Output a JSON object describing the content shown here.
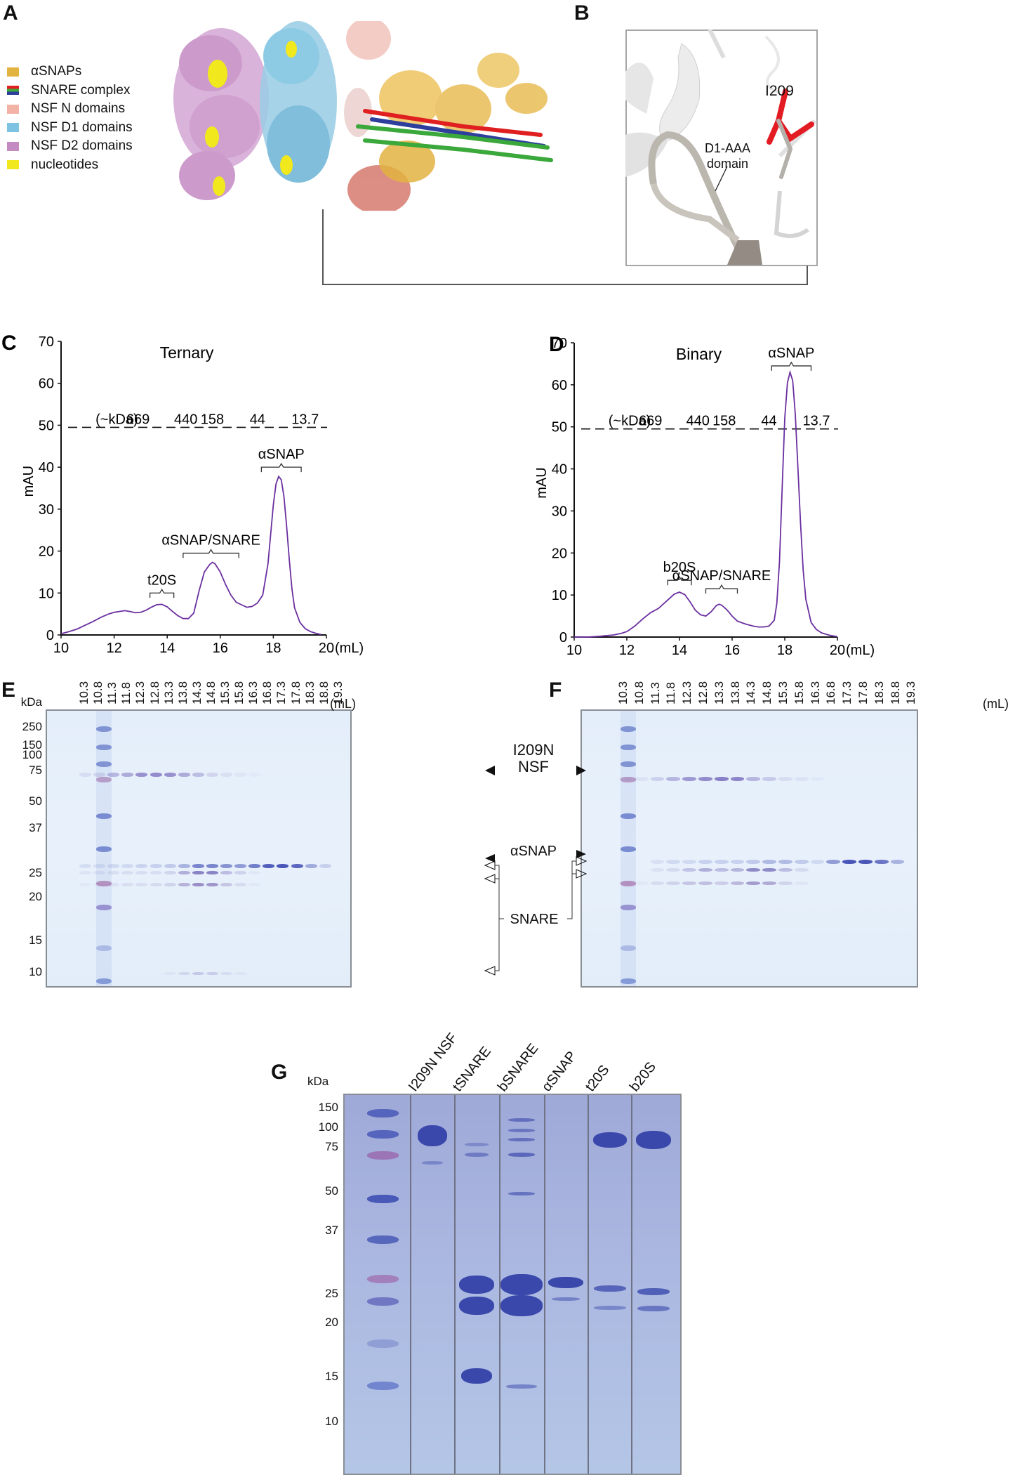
{
  "panels": {
    "A": {
      "letter": "A",
      "legend": [
        {
          "label": "αSNAPs",
          "color": "#e3b341"
        },
        {
          "label": "SNARE complex",
          "color": "multi"
        },
        {
          "label": "NSF N domains",
          "color": "#f2b2a6"
        },
        {
          "label": "NSF D1 domains",
          "color": "#7ec4e2"
        },
        {
          "label": "NSF D2 domains",
          "color": "#c48ac2"
        },
        {
          "label": "nucleotides",
          "color": "#f2e81e"
        }
      ],
      "snare_colors": [
        "#e02020",
        "#3aa83a",
        "#2d3e9c"
      ]
    },
    "B": {
      "letter": "B",
      "residue_label": "I209",
      "domain_label_line1": "D1-AAA",
      "domain_label_line2": "domain",
      "residue_color": "#e31b23"
    },
    "E": {
      "letter": "E"
    },
    "F": {
      "letter": "F"
    },
    "G": {
      "letter": "G"
    }
  },
  "chart_data": [
    {
      "id": "C",
      "type": "line",
      "letter": "C",
      "title": "Ternary",
      "xlabel": "(mL)",
      "ylabel": "mAU",
      "xlim": [
        10,
        20
      ],
      "ylim": [
        0,
        70
      ],
      "xticks": [
        10,
        12,
        14,
        16,
        18,
        20
      ],
      "yticks": [
        0,
        10,
        20,
        30,
        40,
        50,
        60,
        70
      ],
      "line_color": "#6a2fa0",
      "series": [
        {
          "name": "Ternary",
          "x": [
            10.0,
            10.3,
            10.6,
            10.9,
            11.2,
            11.5,
            11.8,
            12.0,
            12.2,
            12.4,
            12.6,
            12.8,
            13.0,
            13.2,
            13.4,
            13.6,
            13.8,
            14.0,
            14.2,
            14.4,
            14.6,
            14.8,
            15.0,
            15.2,
            15.4,
            15.6,
            15.7,
            15.8,
            16.0,
            16.2,
            16.4,
            16.6,
            16.8,
            17.0,
            17.2,
            17.4,
            17.6,
            17.8,
            17.9,
            18.0,
            18.1,
            18.2,
            18.3,
            18.4,
            18.5,
            18.6,
            18.7,
            18.8,
            19.0,
            19.2,
            19.4,
            19.6,
            19.8
          ],
          "y": [
            0.3,
            0.8,
            1.4,
            2.3,
            3.2,
            4.2,
            5.0,
            5.4,
            5.6,
            5.8,
            5.6,
            5.3,
            5.4,
            5.9,
            6.6,
            7.2,
            7.3,
            6.7,
            5.6,
            4.6,
            3.9,
            3.9,
            5.2,
            10.5,
            15.0,
            16.8,
            17.3,
            17.0,
            15.0,
            12.0,
            9.5,
            7.8,
            7.2,
            6.6,
            6.8,
            7.6,
            9.5,
            17.0,
            24.0,
            31.0,
            36.0,
            37.8,
            37.0,
            33.0,
            26.0,
            18.0,
            11.0,
            6.5,
            3.0,
            1.5,
            0.8,
            0.4,
            0.1
          ]
        }
      ],
      "dashed_line": {
        "y": 49.5,
        "label_prefix": "(~kDa)",
        "markers": [
          {
            "label": "669",
            "x": 12.9
          },
          {
            "label": "440",
            "x": 14.7
          },
          {
            "label": "158",
            "x": 15.7
          },
          {
            "label": "44",
            "x": 17.4
          },
          {
            "label": "13.7",
            "x": 19.2
          }
        ]
      },
      "brackets": [
        {
          "label": "t20S",
          "x0": 13.35,
          "x1": 14.25,
          "y": 10
        },
        {
          "label": "αSNAP/SNARE",
          "x0": 14.6,
          "x1": 16.7,
          "y": 19.5
        },
        {
          "label": "αSNAP",
          "x0": 17.55,
          "x1": 19.05,
          "y": 40
        }
      ]
    },
    {
      "id": "D",
      "type": "line",
      "letter": "D",
      "title": "Binary",
      "xlabel": "(mL)",
      "ylabel": "mAU",
      "xlim": [
        10,
        20
      ],
      "ylim": [
        0,
        70
      ],
      "xticks": [
        10,
        12,
        14,
        16,
        18,
        20
      ],
      "yticks": [
        0,
        10,
        20,
        30,
        40,
        50,
        60,
        70
      ],
      "line_color": "#6a2fa0",
      "series": [
        {
          "name": "Binary",
          "x": [
            10.0,
            10.5,
            11.0,
            11.5,
            11.8,
            12.0,
            12.3,
            12.6,
            12.9,
            13.2,
            13.5,
            13.8,
            14.0,
            14.2,
            14.4,
            14.6,
            14.8,
            15.0,
            15.2,
            15.4,
            15.5,
            15.6,
            15.8,
            16.0,
            16.2,
            16.5,
            16.8,
            17.0,
            17.2,
            17.4,
            17.6,
            17.7,
            17.8,
            17.9,
            18.0,
            18.1,
            18.2,
            18.3,
            18.4,
            18.5,
            18.6,
            18.7,
            18.8,
            19.0,
            19.2,
            19.4,
            19.6,
            19.8,
            20.0
          ],
          "y": [
            0.0,
            0.0,
            0.2,
            0.5,
            0.9,
            1.3,
            2.6,
            4.3,
            5.8,
            6.8,
            8.5,
            10.2,
            10.7,
            10.1,
            8.4,
            6.4,
            5.3,
            5.0,
            6.0,
            7.5,
            7.8,
            7.6,
            6.5,
            5.0,
            3.8,
            3.1,
            2.6,
            2.4,
            2.4,
            2.6,
            4.0,
            8.0,
            18.0,
            35.0,
            52.0,
            60.5,
            63.0,
            61.0,
            53.0,
            40.0,
            27.0,
            16.0,
            9.0,
            3.5,
            1.8,
            1.0,
            0.6,
            0.3,
            0.1
          ]
        }
      ],
      "dashed_line": {
        "y": 49.5,
        "label_prefix": "(~kDa)",
        "markers": [
          {
            "label": "669",
            "x": 12.9
          },
          {
            "label": "440",
            "x": 14.7
          },
          {
            "label": "158",
            "x": 15.7
          },
          {
            "label": "44",
            "x": 17.4
          },
          {
            "label": "13.7",
            "x": 19.2
          }
        ]
      },
      "brackets": [
        {
          "label": "b20S",
          "x0": 13.55,
          "x1": 14.45,
          "y": 13.5
        },
        {
          "label": "αSNAP/SNARE",
          "x0": 15.0,
          "x1": 16.2,
          "y": 11.5
        },
        {
          "label": "αSNAP",
          "x0": 17.5,
          "x1": 19.0,
          "y": 64.5
        }
      ]
    }
  ],
  "gels": {
    "fractions": [
      "10.3",
      "10.8",
      "11.3",
      "11.8",
      "12.3",
      "12.8",
      "13.3",
      "13.8",
      "14.3",
      "14.8",
      "15.3",
      "15.8",
      "16.3",
      "16.8",
      "17.3",
      "17.8",
      "18.3",
      "18.8",
      "19.3"
    ],
    "unit_label": "(mL)",
    "kda_label": "kDa",
    "ef_markers": [
      "250",
      "150",
      "100",
      "75",
      "50",
      "37",
      "25",
      "20",
      "15",
      "10"
    ],
    "center_labels": {
      "nsf_line1": "I209N",
      "nsf_line2": "NSF",
      "asnap": "αSNAP",
      "snare": "SNARE"
    },
    "E_band_intensity": {
      "nsf": [
        0.15,
        0.2,
        0.45,
        0.55,
        0.75,
        0.8,
        0.75,
        0.55,
        0.4,
        0.2,
        0.12,
        0.08,
        0.04,
        0,
        0,
        0,
        0,
        0,
        0
      ],
      "asnap": [
        0.12,
        0.12,
        0.15,
        0.15,
        0.18,
        0.2,
        0.25,
        0.4,
        0.7,
        0.7,
        0.6,
        0.55,
        0.75,
        0.95,
        1.0,
        0.9,
        0.45,
        0.2,
        0
      ],
      "snare_upper": [
        0.08,
        0.1,
        0.12,
        0.12,
        0.12,
        0.12,
        0.18,
        0.45,
        0.75,
        0.75,
        0.35,
        0.2,
        0.05,
        0,
        0,
        0,
        0,
        0,
        0
      ],
      "snare_lower": [
        0.05,
        0.05,
        0.1,
        0.12,
        0.12,
        0.15,
        0.2,
        0.45,
        0.7,
        0.65,
        0.3,
        0.15,
        0.05,
        0,
        0,
        0,
        0,
        0,
        0
      ],
      "snare_small": [
        0,
        0,
        0,
        0,
        0,
        0,
        0.08,
        0.2,
        0.35,
        0.3,
        0.15,
        0.08,
        0,
        0,
        0,
        0,
        0,
        0,
        0
      ]
    },
    "F_band_intensity": {
      "nsf": [
        0.05,
        0.1,
        0.25,
        0.45,
        0.7,
        0.8,
        0.9,
        0.85,
        0.45,
        0.3,
        0.15,
        0.1,
        0.05,
        0,
        0,
        0,
        0,
        0,
        0
      ],
      "asnap": [
        0,
        0,
        0.1,
        0.15,
        0.15,
        0.2,
        0.2,
        0.2,
        0.25,
        0.35,
        0.35,
        0.25,
        0.15,
        0.55,
        1.0,
        1.0,
        0.8,
        0.4,
        0
      ],
      "snare_upper": [
        0,
        0,
        0.1,
        0.15,
        0.3,
        0.45,
        0.35,
        0.4,
        0.7,
        0.7,
        0.35,
        0.15,
        0,
        0,
        0,
        0,
        0,
        0,
        0
      ],
      "snare_lower": [
        0.05,
        0.05,
        0.15,
        0.2,
        0.3,
        0.35,
        0.25,
        0.4,
        0.6,
        0.5,
        0.2,
        0.08,
        0,
        0,
        0,
        0,
        0,
        0,
        0
      ]
    },
    "G": {
      "kda_label": "kDa",
      "markers": [
        "150",
        "100",
        "75",
        "50",
        "37",
        "25",
        "20",
        "15",
        "10"
      ],
      "lanes": [
        "I209N NSF",
        "tSNARE",
        "bSNARE",
        "αSNAP",
        "t20S",
        "b20S"
      ]
    }
  }
}
